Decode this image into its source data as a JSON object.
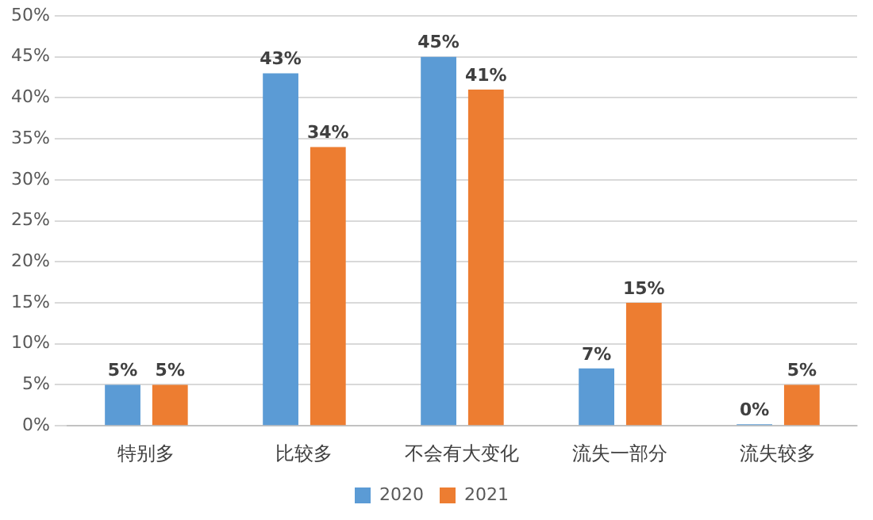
{
  "chart_data": {
    "type": "bar",
    "categories": [
      "特别多",
      "比较多",
      "不会有大变化",
      "流失一部分",
      "流失较多"
    ],
    "series": [
      {
        "name": "2020",
        "color": "#5b9bd5",
        "values": [
          5,
          43,
          45,
          7,
          0
        ],
        "value_labels": [
          "5%",
          "43%",
          "45%",
          "7%",
          "0%"
        ]
      },
      {
        "name": "2021",
        "color": "#ed7d31",
        "values": [
          5,
          34,
          41,
          15,
          5
        ],
        "value_labels": [
          "5%",
          "34%",
          "41%",
          "15%",
          "5%"
        ]
      }
    ],
    "ylim": [
      0,
      50
    ],
    "yticks": [
      {
        "value": 0,
        "label": "0%"
      },
      {
        "value": 5,
        "label": "5%"
      },
      {
        "value": 10,
        "label": "10%"
      },
      {
        "value": 15,
        "label": "15%"
      },
      {
        "value": 20,
        "label": "20%"
      },
      {
        "value": 25,
        "label": "25%"
      },
      {
        "value": 30,
        "label": "30%"
      },
      {
        "value": 35,
        "label": "35%"
      },
      {
        "value": 40,
        "label": "40%"
      },
      {
        "value": 45,
        "label": "45%"
      },
      {
        "value": 50,
        "label": "50%"
      }
    ],
    "grid": "y",
    "legend": "bottom"
  }
}
